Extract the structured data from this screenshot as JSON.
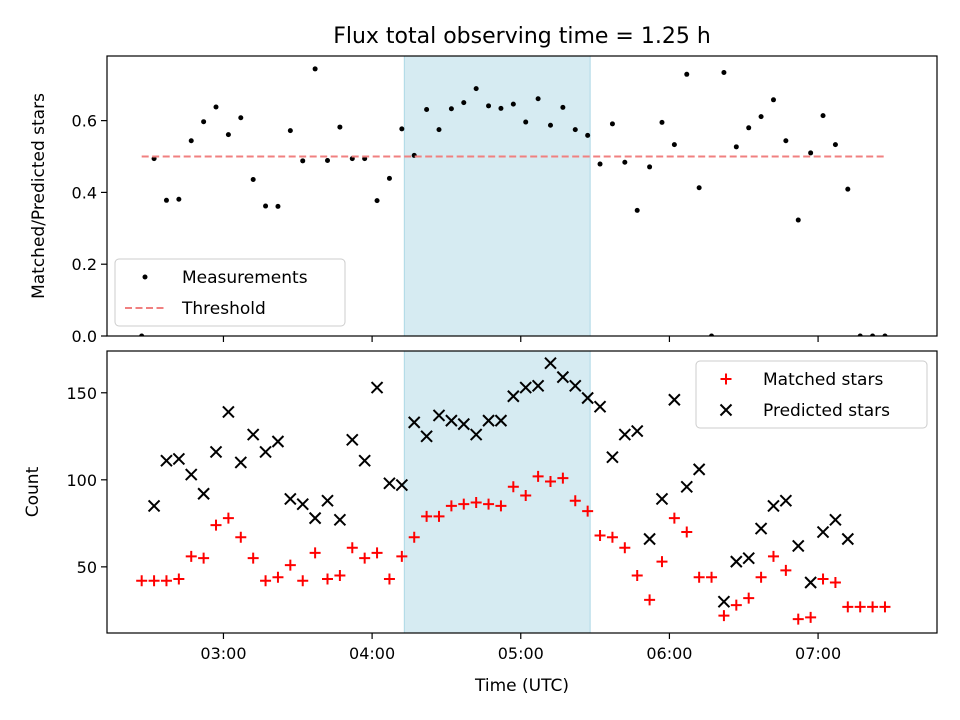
{
  "chart_data": {
    "title": "Flux total observing time = 1.25 h",
    "xlabel": "Time (UTC)",
    "x_ticks": [
      "03:00",
      "04:00",
      "05:00",
      "06:00",
      "07:00"
    ],
    "highlight_span": [
      "04:13",
      "05:28"
    ],
    "panels": [
      {
        "type": "scatter",
        "ylabel": "Matched/Predicted stars",
        "ylim": [
          0,
          0.78
        ],
        "y_ticks": [
          0.0,
          0.2,
          0.4,
          0.6
        ],
        "legend": "lower-left",
        "series": [
          {
            "name": "Measurements",
            "marker": "dot",
            "color": "#000000",
            "points": [
              [
                "02:27",
                0.0
              ],
              [
                "02:32",
                0.494
              ],
              [
                "02:37",
                0.378
              ],
              [
                "02:42",
                0.381
              ],
              [
                "02:47",
                0.544
              ],
              [
                "02:52",
                0.597
              ],
              [
                "02:57",
                0.638
              ],
              [
                "03:02",
                0.561
              ],
              [
                "03:07",
                0.608
              ],
              [
                "03:12",
                0.436
              ],
              [
                "03:17",
                0.362
              ],
              [
                "03:22",
                0.361
              ],
              [
                "03:27",
                0.572
              ],
              [
                "03:32",
                0.488
              ],
              [
                "03:37",
                0.744
              ],
              [
                "03:42",
                0.489
              ],
              [
                "03:47",
                0.582
              ],
              [
                "03:52",
                0.494
              ],
              [
                "03:57",
                0.494
              ],
              [
                "04:02",
                0.377
              ],
              [
                "04:07",
                0.439
              ],
              [
                "04:12",
                0.577
              ],
              [
                "04:17",
                0.503
              ],
              [
                "04:22",
                0.631
              ],
              [
                "04:27",
                0.575
              ],
              [
                "04:32",
                0.633
              ],
              [
                "04:37",
                0.65
              ],
              [
                "04:42",
                0.689
              ],
              [
                "04:47",
                0.641
              ],
              [
                "04:52",
                0.634
              ],
              [
                "04:57",
                0.646
              ],
              [
                "05:02",
                0.596
              ],
              [
                "05:07",
                0.661
              ],
              [
                "05:12",
                0.587
              ],
              [
                "05:17",
                0.637
              ],
              [
                "05:22",
                0.575
              ],
              [
                "05:27",
                0.559
              ],
              [
                "05:32",
                0.479
              ],
              [
                "05:37",
                0.591
              ],
              [
                "05:42",
                0.484
              ],
              [
                "05:47",
                0.35
              ],
              [
                "05:52",
                0.471
              ],
              [
                "05:57",
                0.595
              ],
              [
                "06:02",
                0.533
              ],
              [
                "06:07",
                0.729
              ],
              [
                "06:12",
                0.413
              ],
              [
                "06:17",
                0.0
              ],
              [
                "06:22",
                0.734
              ],
              [
                "06:27",
                0.527
              ],
              [
                "06:32",
                0.58
              ],
              [
                "06:37",
                0.611
              ],
              [
                "06:42",
                0.658
              ],
              [
                "06:47",
                0.544
              ],
              [
                "06:52",
                0.323
              ],
              [
                "06:57",
                0.51
              ],
              [
                "07:02",
                0.614
              ],
              [
                "07:07",
                0.533
              ],
              [
                "07:12",
                0.409
              ],
              [
                "07:17",
                0.0
              ],
              [
                "07:22",
                0.0
              ],
              [
                "07:27",
                0.0
              ]
            ]
          },
          {
            "name": "Threshold",
            "marker": "dashed-line",
            "color": "#f08080",
            "points": [
              [
                "02:27",
                0.5
              ],
              [
                "07:27",
                0.5
              ]
            ]
          }
        ]
      },
      {
        "type": "scatter",
        "ylabel": "Count",
        "ylim": [
          12,
          174
        ],
        "y_ticks": [
          50,
          100,
          150
        ],
        "legend": "top-right",
        "series": [
          {
            "name": "Matched stars",
            "marker": "plus",
            "color": "#ff0000",
            "values": [
              42,
              42,
              42,
              43,
              56,
              55,
              74,
              78,
              67,
              55,
              42,
              44,
              51,
              42,
              58,
              43,
              45,
              61,
              55,
              58,
              43,
              56,
              67,
              79,
              79,
              85,
              86,
              87,
              86,
              85,
              96,
              91,
              102,
              99,
              101,
              88,
              82,
              68,
              67,
              61,
              45,
              31,
              53,
              78,
              70,
              44,
              44,
              22,
              28,
              32,
              44,
              56,
              48,
              20,
              21,
              43,
              41,
              27,
              27,
              27,
              27
            ]
          },
          {
            "name": "Predicted stars",
            "marker": "x",
            "color": "#000000",
            "points": [
              [
                "02:32",
                85
              ],
              [
                "02:37",
                111
              ],
              [
                "02:42",
                112
              ],
              [
                "02:47",
                103
              ],
              [
                "02:52",
                92
              ],
              [
                "02:57",
                116
              ],
              [
                "03:02",
                139
              ],
              [
                "03:07",
                110
              ],
              [
                "03:12",
                126
              ],
              [
                "03:17",
                116
              ],
              [
                "03:22",
                122
              ],
              [
                "03:27",
                89
              ],
              [
                "03:32",
                86
              ],
              [
                "03:37",
                78
              ],
              [
                "03:42",
                88
              ],
              [
                "03:47",
                77
              ],
              [
                "03:52",
                123
              ],
              [
                "03:57",
                111
              ],
              [
                "04:02",
                153
              ],
              [
                "04:07",
                98
              ],
              [
                "04:12",
                97
              ],
              [
                "04:17",
                133
              ],
              [
                "04:22",
                125
              ],
              [
                "04:27",
                137
              ],
              [
                "04:32",
                134
              ],
              [
                "04:37",
                132
              ],
              [
                "04:42",
                126
              ],
              [
                "04:47",
                134
              ],
              [
                "04:52",
                134
              ],
              [
                "04:57",
                148
              ],
              [
                "05:02",
                153
              ],
              [
                "05:07",
                154
              ],
              [
                "05:12",
                167
              ],
              [
                "05:17",
                159
              ],
              [
                "05:22",
                154
              ],
              [
                "05:27",
                147
              ],
              [
                "05:32",
                142
              ],
              [
                "05:37",
                113
              ],
              [
                "05:42",
                126
              ],
              [
                "05:47",
                128
              ],
              [
                "05:52",
                66
              ],
              [
                "05:57",
                89
              ],
              [
                "06:02",
                146
              ],
              [
                "06:07",
                96
              ],
              [
                "06:12",
                106
              ],
              [
                "06:22",
                30
              ],
              [
                "06:27",
                53
              ],
              [
                "06:32",
                55
              ],
              [
                "06:37",
                72
              ],
              [
                "06:42",
                85
              ],
              [
                "06:47",
                88
              ],
              [
                "06:52",
                62
              ],
              [
                "06:57",
                41
              ],
              [
                "07:02",
                70
              ],
              [
                "07:07",
                77
              ],
              [
                "07:12",
                66
              ]
            ]
          }
        ]
      }
    ]
  },
  "colors": {
    "highlight": "#add8e6",
    "threshold": "#f08080",
    "matched": "#ff0000",
    "predicted": "#000000",
    "measurements": "#000000"
  }
}
